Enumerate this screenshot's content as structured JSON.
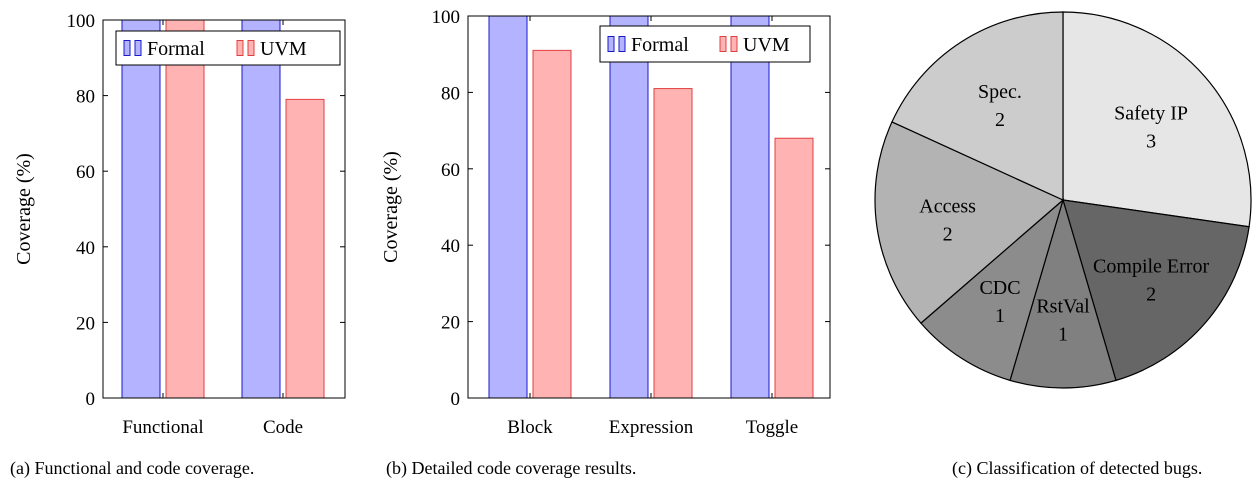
{
  "chart_data": [
    {
      "type": "bar",
      "categories": [
        "Functional",
        "Code"
      ],
      "series": [
        {
          "name": "Formal",
          "values": [
            100,
            100
          ],
          "fill": "#b3b3ff",
          "stroke": "#1a1acc"
        },
        {
          "name": "UVM",
          "values": [
            100,
            79
          ],
          "fill": "#ffb3b3",
          "stroke": "#e04040"
        }
      ],
      "ylabel": "Coverage (%)",
      "ylim": [
        0,
        100
      ],
      "yticks": [
        0,
        20,
        40,
        60,
        80,
        100
      ],
      "legend": "top-right",
      "caption": "(a) Functional and code coverage."
    },
    {
      "type": "bar",
      "categories": [
        "Block",
        "Expression",
        "Toggle"
      ],
      "series": [
        {
          "name": "Formal",
          "values": [
            100,
            100,
            100
          ],
          "fill": "#b3b3ff",
          "stroke": "#1a1acc"
        },
        {
          "name": "UVM",
          "values": [
            91,
            81,
            68
          ],
          "fill": "#ffb3b3",
          "stroke": "#e04040"
        }
      ],
      "ylabel": "Coverage (%)",
      "ylim": [
        0,
        100
      ],
      "yticks": [
        0,
        20,
        40,
        60,
        80,
        100
      ],
      "legend": "top-right",
      "caption": "(b) Detailed code coverage results."
    },
    {
      "type": "pie",
      "slices": [
        {
          "label": "Safety IP",
          "value": 3,
          "color": "#e6e6e6"
        },
        {
          "label": "Compile Error",
          "value": 2,
          "color": "#666666"
        },
        {
          "label": "RstVal",
          "value": 1,
          "color": "#808080"
        },
        {
          "label": "CDC",
          "value": 1,
          "color": "#8c8c8c"
        },
        {
          "label": "Access",
          "value": 2,
          "color": "#b3b3b3"
        },
        {
          "label": "Spec.",
          "value": 2,
          "color": "#cccccc"
        }
      ],
      "caption": "(c) Classification of detected bugs."
    }
  ]
}
